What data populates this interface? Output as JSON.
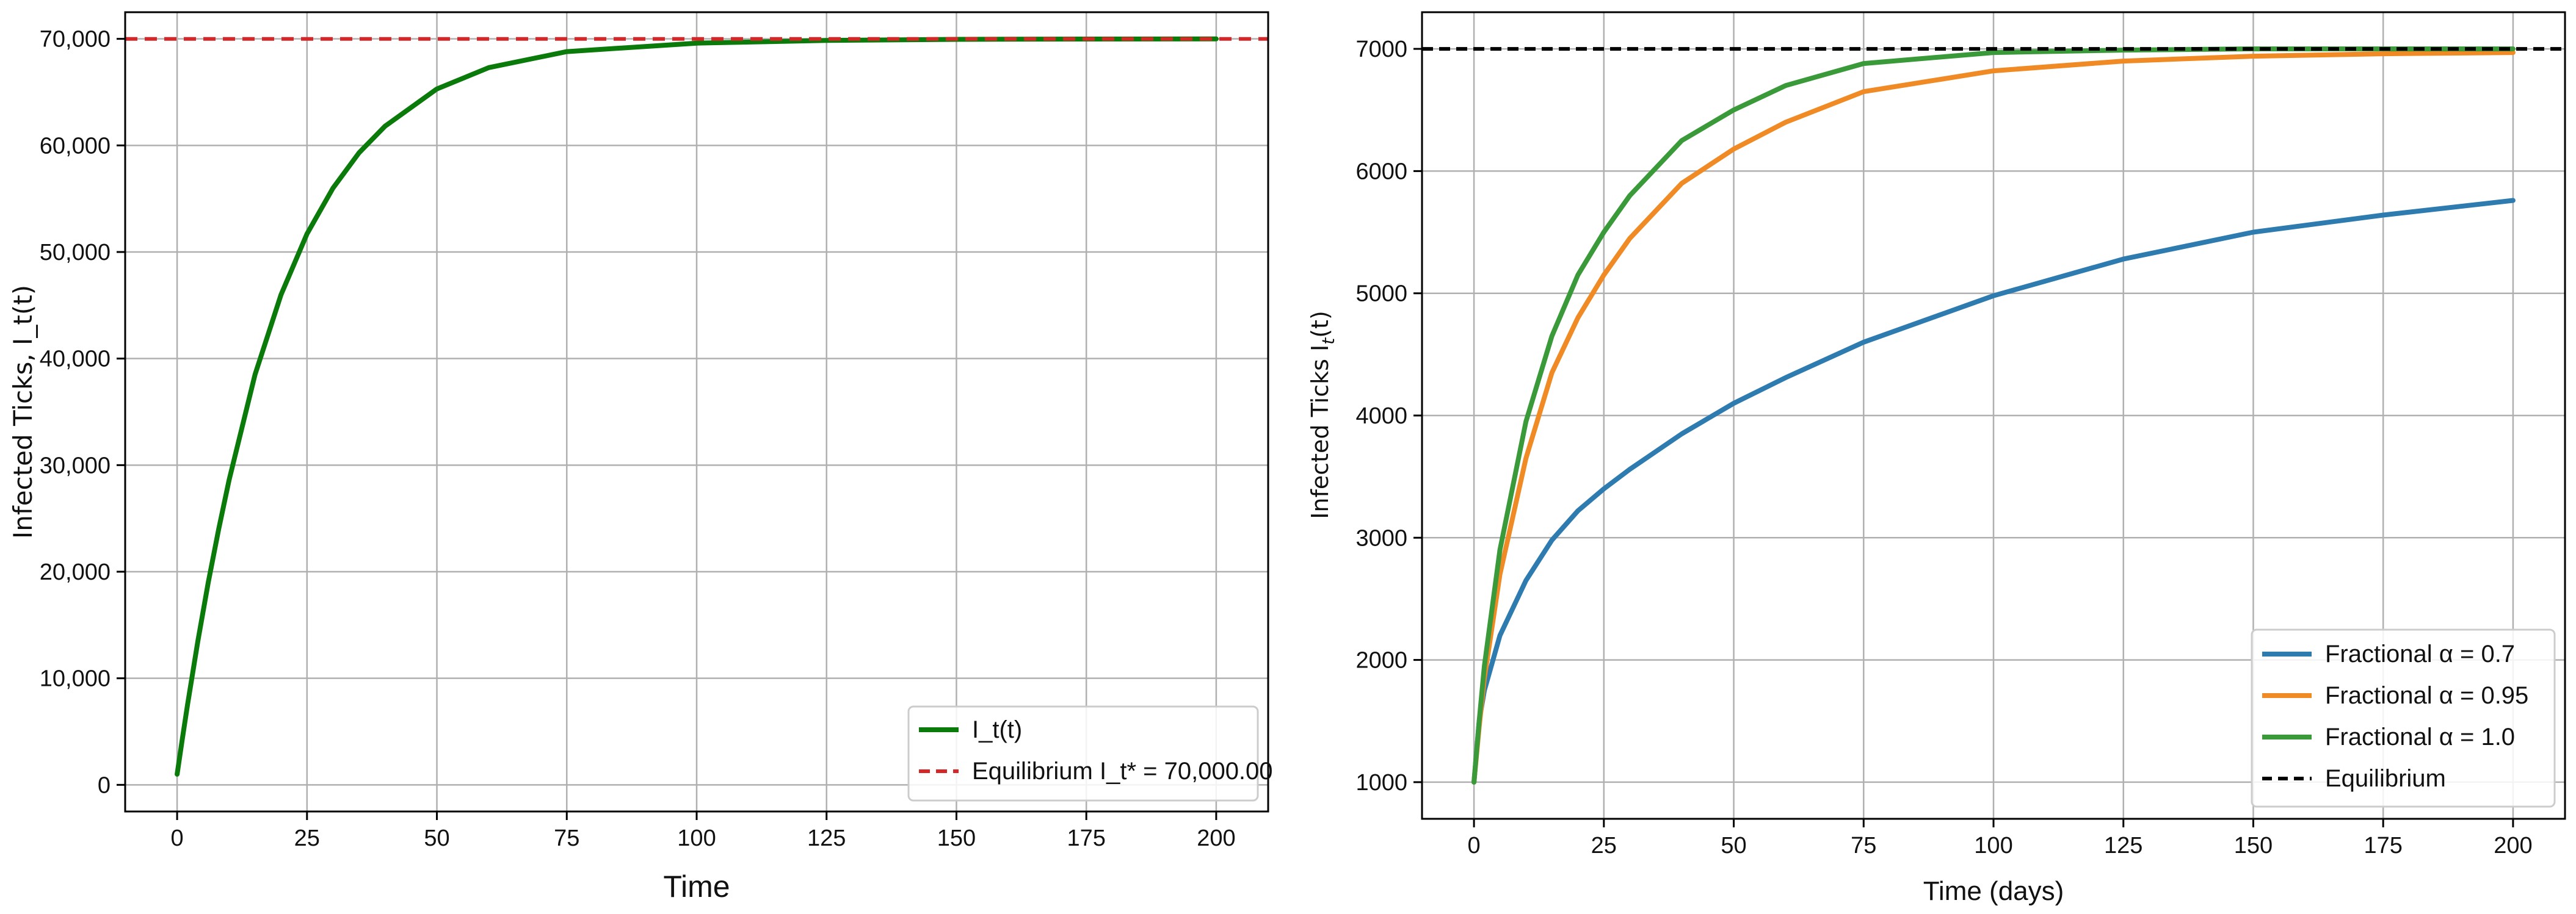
{
  "chart_data": [
    {
      "type": "line",
      "xlabel": "Time",
      "ylabel": "Infected Ticks, I_t(t)",
      "xlim": [
        -10,
        210
      ],
      "ylim": [
        -2500,
        72500
      ],
      "xticks": [
        0,
        25,
        50,
        75,
        100,
        125,
        150,
        175,
        200
      ],
      "yticks": [
        0,
        10000,
        20000,
        30000,
        40000,
        50000,
        60000,
        70000
      ],
      "ytick_labels": [
        "0",
        "10,000",
        "20,000",
        "30,000",
        "40,000",
        "50,000",
        "60,000",
        "70,000"
      ],
      "grid": true,
      "legend_position": "lower-right",
      "series": [
        {
          "name": "I_t(t)",
          "color": "#0a7a0a",
          "style": "solid",
          "x": [
            0,
            1,
            2,
            4,
            6,
            8,
            10,
            15,
            20,
            25,
            30,
            35,
            40,
            50,
            60,
            75,
            100,
            125,
            150,
            175,
            200
          ],
          "y": [
            1000,
            4300,
            7500,
            13500,
            19000,
            24000,
            28600,
            38500,
            46000,
            51700,
            56000,
            59300,
            61800,
            65300,
            67300,
            68800,
            69600,
            69850,
            69950,
            69980,
            70000
          ]
        },
        {
          "name": "Equilibrium I_t* = 70,000.00",
          "color": "#d62728",
          "style": "dashed",
          "x": [
            -10,
            210
          ],
          "y": [
            70000,
            70000
          ]
        }
      ]
    },
    {
      "type": "line",
      "xlabel": "Time (days)",
      "ylabel": "Infected Ticks I_t(t)",
      "ylabel_base": "Infected Ticks I",
      "ylabel_sub": "t",
      "ylabel_arg": "(t)",
      "xlim": [
        -10,
        210
      ],
      "ylim": [
        700,
        7300
      ],
      "xticks": [
        0,
        25,
        50,
        75,
        100,
        125,
        150,
        175,
        200
      ],
      "yticks": [
        1000,
        2000,
        3000,
        4000,
        5000,
        6000,
        7000
      ],
      "ytick_labels": [
        "1000",
        "2000",
        "3000",
        "4000",
        "5000",
        "6000",
        "7000"
      ],
      "grid": true,
      "legend_position": "lower-right",
      "series": [
        {
          "name": "Fractional α = 0.7",
          "color": "#2e7bb0",
          "style": "solid",
          "x": [
            0,
            1,
            2,
            5,
            10,
            15,
            20,
            25,
            30,
            40,
            50,
            60,
            75,
            100,
            125,
            150,
            175,
            200
          ],
          "y": [
            1000,
            1500,
            1750,
            2200,
            2650,
            2980,
            3220,
            3400,
            3560,
            3850,
            4100,
            4310,
            4600,
            4980,
            5280,
            5500,
            5640,
            5760
          ]
        },
        {
          "name": "Fractional α = 0.95",
          "color": "#f08a24",
          "style": "solid",
          "x": [
            0,
            1,
            2,
            5,
            10,
            15,
            20,
            25,
            30,
            40,
            50,
            60,
            75,
            100,
            125,
            150,
            175,
            200
          ],
          "y": [
            1000,
            1450,
            1850,
            2700,
            3650,
            4350,
            4800,
            5150,
            5450,
            5900,
            6180,
            6400,
            6650,
            6820,
            6900,
            6940,
            6960,
            6970
          ]
        },
        {
          "name": "Fractional α = 1.0",
          "color": "#3a9a3a",
          "style": "solid",
          "x": [
            0,
            1,
            2,
            5,
            10,
            15,
            20,
            25,
            30,
            40,
            50,
            60,
            75,
            100,
            125,
            150,
            175,
            200
          ],
          "y": [
            1000,
            1500,
            1950,
            2900,
            3950,
            4650,
            5150,
            5500,
            5800,
            6250,
            6500,
            6700,
            6880,
            6970,
            6990,
            7000,
            7000,
            7000
          ]
        },
        {
          "name": "Equilibrium",
          "color": "#000000",
          "style": "dashed",
          "x": [
            -10,
            210
          ],
          "y": [
            7000,
            7000
          ]
        }
      ]
    }
  ]
}
